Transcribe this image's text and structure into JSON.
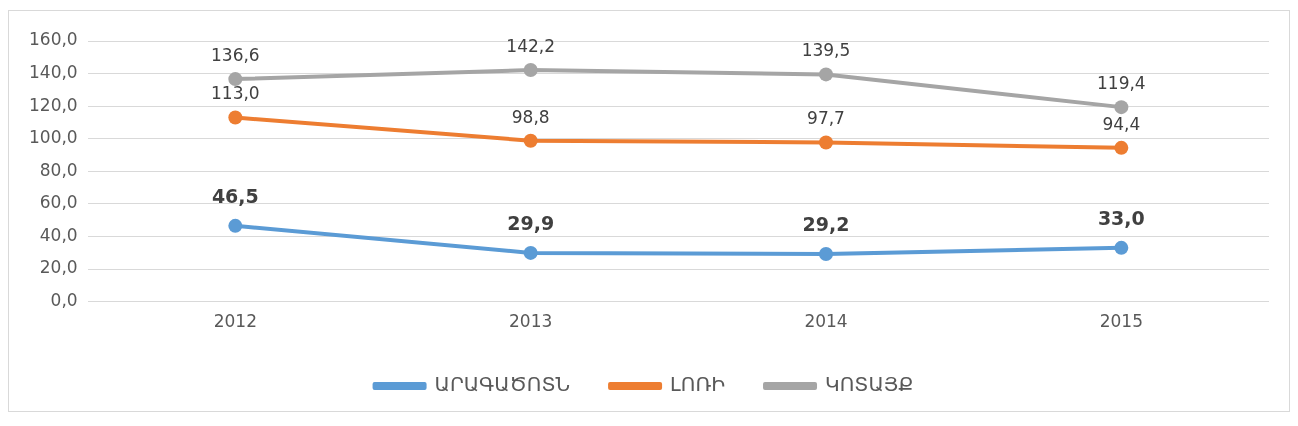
{
  "chart_data": {
    "type": "line",
    "categories": [
      "2012",
      "2013",
      "2014",
      "2015"
    ],
    "series": [
      {
        "name": "ԱՐԱԳԱԾՈՏՆ",
        "color": "#5b9bd5",
        "values": [
          46.5,
          29.9,
          29.2,
          33.0
        ],
        "value_labels": [
          "46,5",
          "29,9",
          "29,2",
          "33,0"
        ]
      },
      {
        "name": "ԼՈՌԻ",
        "color": "#ed7d31",
        "values": [
          113.0,
          98.8,
          97.7,
          94.4
        ],
        "value_labels": [
          "113,0",
          "98,8",
          "97,7",
          "94,4"
        ]
      },
      {
        "name": "ԿՈՏԱՅՔ",
        "color": "#a5a5a5",
        "values": [
          136.6,
          142.2,
          139.5,
          119.4
        ],
        "value_labels": [
          "136,6",
          "142,2",
          "139,5",
          "119,4"
        ]
      }
    ],
    "ylim": [
      0,
      160
    ],
    "yticks": [
      {
        "value": 0,
        "label": "0,0"
      },
      {
        "value": 20,
        "label": "20,0"
      },
      {
        "value": 40,
        "label": "40,0"
      },
      {
        "value": 60,
        "label": "60,0"
      },
      {
        "value": 80,
        "label": "80,0"
      },
      {
        "value": 100,
        "label": "100,0"
      },
      {
        "value": 120,
        "label": "120,0"
      },
      {
        "value": 140,
        "label": "140,0"
      },
      {
        "value": 160,
        "label": "160,0"
      }
    ],
    "grid": "y",
    "legend": "bottom",
    "marker": "circle",
    "line_style": "solid"
  }
}
